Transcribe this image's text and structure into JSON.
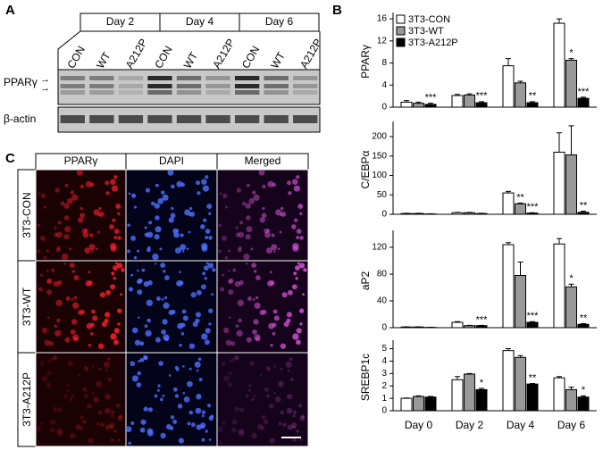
{
  "panel_a": {
    "letter": "A",
    "days": [
      "Day 2",
      "Day 4",
      "Day 6"
    ],
    "lanes": [
      "CON",
      "WT",
      "A212P",
      "CON",
      "WT",
      "A212P",
      "CON",
      "WT",
      "A212P"
    ],
    "rows": [
      "PPARγ",
      "β-actin"
    ]
  },
  "panel_b": {
    "letter": "B"
  },
  "panel_c": {
    "letter": "C",
    "columns": [
      "PPARγ",
      "DAPI",
      "Merged"
    ],
    "rows": [
      "3T3-CON",
      "3T3-WT",
      "3T3-A212P"
    ]
  },
  "chart_data": [
    {
      "type": "bar",
      "y_label": "PPARγ",
      "ylim": [
        0,
        16.5
      ],
      "yticks": [
        0,
        4,
        8,
        12,
        16
      ],
      "series": [
        {
          "name": "3T3-CON",
          "color": "#ffffff",
          "values": [
            0.9,
            2.1,
            7.5,
            15.2
          ],
          "errors": [
            0.3,
            0.2,
            1.3,
            0.8
          ],
          "annotations": [
            null,
            null,
            null,
            null
          ]
        },
        {
          "name": "3T3-WT",
          "color": "#999999",
          "values": [
            0.7,
            2.2,
            4.4,
            8.5
          ],
          "errors": [
            0.2,
            0.2,
            0.3,
            0.3
          ],
          "annotations": [
            null,
            null,
            null,
            "*"
          ]
        },
        {
          "name": "3T3-A212P",
          "color": "#000000",
          "values": [
            0.5,
            0.8,
            0.8,
            1.6
          ],
          "errors": [
            0.2,
            0.2,
            0.2,
            0.2
          ],
          "annotations": [
            "***",
            "***",
            "**",
            "***"
          ]
        }
      ]
    },
    {
      "type": "bar",
      "y_label": "C/EBPα",
      "ylim": [
        0,
        230
      ],
      "yticks": [
        0,
        50,
        100,
        150,
        200
      ],
      "series": [
        {
          "color": "#ffffff",
          "values": [
            2,
            4,
            55,
            160
          ],
          "errors": [
            0.5,
            1,
            4,
            50
          ],
          "annotations": [
            null,
            null,
            null,
            null
          ]
        },
        {
          "color": "#999999",
          "values": [
            2,
            4,
            27,
            153
          ],
          "errors": [
            0.5,
            1,
            2,
            75
          ],
          "annotations": [
            null,
            null,
            "**",
            null
          ]
        },
        {
          "color": "#000000",
          "values": [
            1,
            2,
            3,
            5
          ],
          "errors": [
            0.3,
            0.5,
            1,
            3
          ],
          "annotations": [
            null,
            null,
            "***",
            "**"
          ]
        }
      ]
    },
    {
      "type": "bar",
      "y_label": "aP2",
      "ylim": [
        0,
        140
      ],
      "yticks": [
        0,
        40,
        80,
        120
      ],
      "series": [
        {
          "color": "#ffffff",
          "values": [
            1,
            8,
            124,
            125
          ],
          "errors": [
            0.3,
            1,
            3,
            8
          ],
          "annotations": [
            null,
            null,
            null,
            null
          ]
        },
        {
          "color": "#999999",
          "values": [
            1,
            3,
            78,
            61
          ],
          "errors": [
            0.3,
            0.5,
            20,
            4
          ],
          "annotations": [
            null,
            null,
            null,
            "*"
          ]
        },
        {
          "color": "#000000",
          "values": [
            0.5,
            3,
            8,
            5
          ],
          "errors": [
            0.2,
            0.5,
            1,
            1
          ],
          "annotations": [
            null,
            "***",
            "***",
            "**"
          ]
        }
      ]
    },
    {
      "type": "bar",
      "y_label": "SREBP1c",
      "ylim": [
        0,
        5.4
      ],
      "yticks": [
        0,
        1,
        2,
        3,
        4,
        5
      ],
      "categories": [
        "Day 0",
        "Day 2",
        "Day 4",
        "Day 6"
      ],
      "series": [
        {
          "color": "#ffffff",
          "values": [
            1.0,
            2.5,
            4.85,
            2.65
          ],
          "errors": [
            0.03,
            0.25,
            0.15,
            0.1
          ],
          "annotations": [
            null,
            null,
            null,
            null
          ]
        },
        {
          "color": "#999999",
          "values": [
            1.15,
            2.95,
            4.3,
            1.7
          ],
          "errors": [
            0.05,
            0.05,
            0.15,
            0.2
          ],
          "annotations": [
            null,
            null,
            null,
            null
          ]
        },
        {
          "color": "#000000",
          "values": [
            1.1,
            1.7,
            2.15,
            1.1
          ],
          "errors": [
            0.05,
            0.1,
            0.05,
            0.1
          ],
          "annotations": [
            null,
            "*",
            "**",
            "*"
          ]
        }
      ]
    }
  ]
}
